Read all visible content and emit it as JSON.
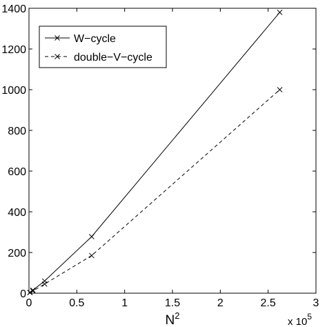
{
  "chart_data": {
    "type": "line",
    "title": "",
    "xlabel": "N",
    "xlabel_superscript": "2",
    "ylabel": "",
    "xlim": [
      0,
      300000
    ],
    "ylim": [
      0,
      1400
    ],
    "x_ticks": [
      0,
      50000,
      100000,
      150000,
      200000,
      250000,
      300000
    ],
    "x_tick_labels": [
      "0",
      "0.5",
      "1",
      "1.5",
      "2",
      "2.5",
      "3"
    ],
    "y_ticks": [
      0,
      200,
      400,
      600,
      800,
      1000,
      1200,
      1400
    ],
    "y_tick_labels": [
      "0",
      "200",
      "400",
      "600",
      "800",
      "1000",
      "1200",
      "1400"
    ],
    "x_exponent_label": "x 10",
    "x_exponent_power": "5",
    "grid": false,
    "legend_position": "top-left",
    "series": [
      {
        "name": "W−cycle",
        "line_style": "solid",
        "marker": "x",
        "color": "#000000",
        "x": [
          1024,
          4096,
          16384,
          65536,
          262144
        ],
        "y": [
          4,
          15,
          60,
          278,
          1380
        ]
      },
      {
        "name": "double−V−cycle",
        "line_style": "dashed",
        "marker": "x",
        "color": "#000000",
        "x": [
          1024,
          4096,
          16384,
          65536,
          262144
        ],
        "y": [
          3,
          11,
          45,
          185,
          1000
        ]
      }
    ]
  }
}
